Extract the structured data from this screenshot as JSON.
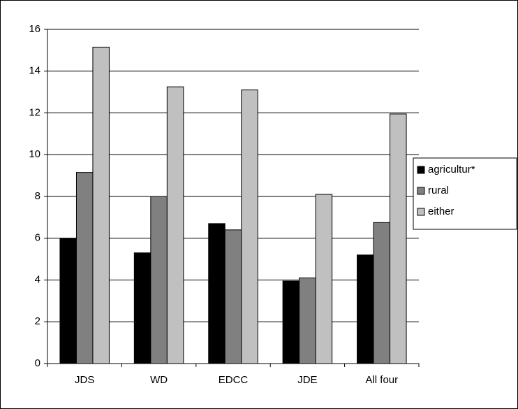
{
  "chart_data": {
    "type": "bar",
    "categories": [
      "JDS",
      "WD",
      "EDCC",
      "JDE",
      "All four"
    ],
    "series": [
      {
        "name": "agricultur*",
        "color": "#000000",
        "values": [
          6.0,
          5.3,
          6.7,
          3.95,
          5.2
        ]
      },
      {
        "name": "rural",
        "color": "#808080",
        "values": [
          9.15,
          8.0,
          6.4,
          4.1,
          6.75
        ]
      },
      {
        "name": "either",
        "color": "#c0c0c0",
        "values": [
          15.15,
          13.25,
          13.1,
          8.1,
          11.95
        ]
      }
    ],
    "ylim": [
      0,
      16
    ],
    "yticks": [
      0,
      2,
      4,
      6,
      8,
      10,
      12,
      14,
      16
    ],
    "grid": true,
    "legend": "right"
  }
}
